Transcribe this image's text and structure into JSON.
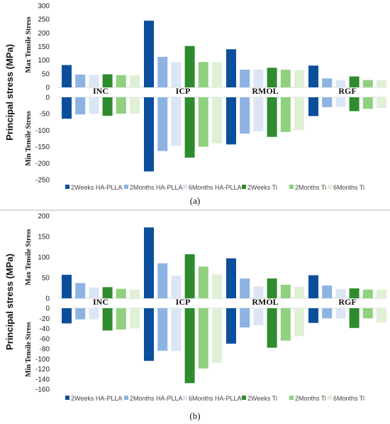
{
  "chart_data": [
    {
      "type": "bar",
      "caption": "(a)",
      "ylabel": "Principal stress (MPa)",
      "top_label": "Max Tensile Stress",
      "bottom_label": "Min Tensile Stress",
      "categories": [
        "INC",
        "ICP",
        "RMOL",
        "RGF"
      ],
      "top_ticks": [
        "300",
        "250",
        "200",
        "150",
        "100",
        "50",
        "0"
      ],
      "top_ylim": [
        0,
        300
      ],
      "bottom_ticks": [
        "0",
        "-50",
        "-100",
        "-150",
        "-200",
        "-250"
      ],
      "bottom_ylim": [
        -250,
        0
      ],
      "series": [
        {
          "name": "2Weeks HA-PLLA",
          "color": "#0b4f9c",
          "max": [
            82,
            245,
            140,
            80
          ],
          "min": [
            -65,
            -225,
            -143,
            -57
          ]
        },
        {
          "name": "2Months HA-PLLA",
          "color": "#8db3e2",
          "max": [
            47,
            112,
            65,
            33
          ],
          "min": [
            -52,
            -163,
            -110,
            -30
          ]
        },
        {
          "name": "6Months HA-PLLA",
          "color": "#dbe6f4",
          "max": [
            46,
            93,
            65,
            27
          ],
          "min": [
            -50,
            -148,
            -103,
            -29
          ]
        },
        {
          "name": "2Weeks Ti",
          "color": "#2e8b2e",
          "max": [
            48,
            152,
            72,
            40
          ],
          "min": [
            -56,
            -183,
            -120,
            -42
          ]
        },
        {
          "name": "2Months Ti",
          "color": "#8fd17e",
          "max": [
            45,
            93,
            65,
            27
          ],
          "min": [
            -50,
            -150,
            -105,
            -35
          ]
        },
        {
          "name": "6Months Ti",
          "color": "#dff0d6",
          "max": [
            45,
            93,
            64,
            26
          ],
          "min": [
            -50,
            -140,
            -100,
            -32
          ]
        }
      ]
    },
    {
      "type": "bar",
      "caption": "(b)",
      "ylabel": "Principal stress (MPa)",
      "top_label": "Max Tensile Stress",
      "bottom_label": "Min Tensile Stress",
      "categories": [
        "INC",
        "ICP",
        "RMOL",
        "RGF"
      ],
      "top_ticks": [
        "200",
        "150",
        "100",
        "50",
        "0"
      ],
      "top_ylim": [
        0,
        200
      ],
      "bottom_ticks": [
        "0",
        "-20",
        "-40",
        "-60",
        "-80",
        "-100",
        "-120",
        "-140",
        "-160"
      ],
      "bottom_ylim": [
        -160,
        0
      ],
      "series": [
        {
          "name": "2Weeks HA-PLLA",
          "color": "#0b4f9c",
          "max": [
            57,
            172,
            97,
            56
          ],
          "min": [
            -30,
            -104,
            -70,
            -29
          ]
        },
        {
          "name": "2Months HA-PLLA",
          "color": "#8db3e2",
          "max": [
            37,
            85,
            48,
            31
          ],
          "min": [
            -22,
            -84,
            -38,
            -20
          ]
        },
        {
          "name": "6Months HA-PLLA",
          "color": "#dbe6f4",
          "max": [
            26,
            55,
            29,
            22
          ],
          "min": [
            -22,
            -84,
            -34,
            -20
          ]
        },
        {
          "name": "2Weeks Ti",
          "color": "#2e8b2e",
          "max": [
            27,
            107,
            48,
            24
          ],
          "min": [
            -44,
            -148,
            -78,
            -39
          ]
        },
        {
          "name": "2Months Ti",
          "color": "#8fd17e",
          "max": [
            23,
            77,
            33,
            21
          ],
          "min": [
            -42,
            -119,
            -64,
            -20
          ]
        },
        {
          "name": "6Months Ti",
          "color": "#dff0d6",
          "max": [
            21,
            58,
            28,
            21
          ],
          "min": [
            -40,
            -108,
            -55,
            -28
          ]
        }
      ]
    }
  ]
}
